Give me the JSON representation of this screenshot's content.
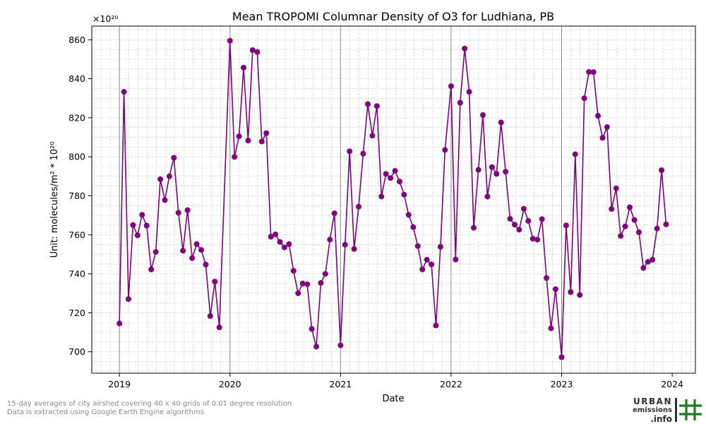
{
  "chart_data": {
    "type": "line",
    "title": "Mean TROPOMI Columnar Density of O3 for Ludhiana, PB",
    "xlabel": "Date",
    "ylabel": "Unit: molecules/m² * 10²⁰",
    "y_offset_label": "×10²⁰",
    "xlim": [
      2018.75,
      2024.21
    ],
    "ylim": [
      689,
      867
    ],
    "x_ticks": [
      2019,
      2020,
      2021,
      2022,
      2023,
      2024
    ],
    "x_tick_labels": [
      "2019",
      "2020",
      "2021",
      "2022",
      "2023",
      "2024"
    ],
    "y_ticks": [
      700,
      720,
      740,
      760,
      780,
      800,
      820,
      840,
      860
    ],
    "y_tick_labels": [
      "700",
      "720",
      "740",
      "760",
      "780",
      "800",
      "820",
      "840",
      "860"
    ],
    "grid": true,
    "year_lines": [
      2019,
      2020,
      2021,
      2022,
      2023
    ],
    "series": [
      {
        "color": "#800080",
        "marker": "circle",
        "x": [
          2019.0,
          2019.041,
          2019.082,
          2019.123,
          2019.164,
          2019.205,
          2019.247,
          2019.288,
          2019.329,
          2019.37,
          2019.411,
          2019.452,
          2019.493,
          2019.534,
          2019.575,
          2019.616,
          2019.658,
          2019.699,
          2019.74,
          2019.781,
          2019.822,
          2019.863,
          2019.904,
          2020.0,
          2020.041,
          2020.082,
          2020.123,
          2020.164,
          2020.205,
          2020.247,
          2020.288,
          2020.329,
          2020.37,
          2020.411,
          2020.452,
          2020.493,
          2020.534,
          2020.575,
          2020.616,
          2020.658,
          2020.699,
          2020.74,
          2020.781,
          2020.822,
          2020.863,
          2020.904,
          2020.945,
          2021.0,
          2021.041,
          2021.082,
          2021.123,
          2021.164,
          2021.205,
          2021.247,
          2021.288,
          2021.329,
          2021.37,
          2021.411,
          2021.452,
          2021.493,
          2021.534,
          2021.575,
          2021.616,
          2021.658,
          2021.699,
          2021.74,
          2021.781,
          2021.822,
          2021.863,
          2021.904,
          2021.945,
          2022.0,
          2022.041,
          2022.082,
          2022.123,
          2022.164,
          2022.205,
          2022.247,
          2022.288,
          2022.329,
          2022.37,
          2022.411,
          2022.452,
          2022.493,
          2022.534,
          2022.575,
          2022.616,
          2022.658,
          2022.699,
          2022.74,
          2022.781,
          2022.822,
          2022.863,
          2022.904,
          2022.945,
          2023.0,
          2023.041,
          2023.082,
          2023.123,
          2023.164,
          2023.205,
          2023.247,
          2023.288,
          2023.329,
          2023.37,
          2023.411,
          2023.452,
          2023.493,
          2023.534,
          2023.575,
          2023.616,
          2023.658,
          2023.699,
          2023.74,
          2023.781,
          2023.822,
          2023.863,
          2023.904,
          2023.945
        ],
        "y": [
          714.5,
          833.3,
          727,
          765,
          759.7,
          770.2,
          764.7,
          742.2,
          751.2,
          788.5,
          777.8,
          790,
          799.5,
          771.3,
          751.8,
          772.6,
          748,
          755.2,
          752.2,
          744.7,
          718.3,
          736,
          712.5,
          859.5,
          799.9,
          810.5,
          845.7,
          808.3,
          854.7,
          853.7,
          807.8,
          812.1,
          759,
          760.2,
          756.3,
          753.5,
          755.2,
          741.5,
          730,
          735,
          734.6,
          711.7,
          702.6,
          735.3,
          739.9,
          757.5,
          771,
          703.3,
          754.9,
          802.8,
          752.7,
          774.4,
          801.6,
          827,
          810.8,
          826,
          779.6,
          791.2,
          789.1,
          792.8,
          787.3,
          780.6,
          770.2,
          763.9,
          754.2,
          742.2,
          747.2,
          744.8,
          713.5,
          753.8,
          803.5,
          836.2,
          747.3,
          827.7,
          855.5,
          833.3,
          763.6,
          793.3,
          821.4,
          779.6,
          794.7,
          791.2,
          817.6,
          792.3,
          768.2,
          765.2,
          762.6,
          773.3,
          767.1,
          758,
          757.5,
          768,
          737.8,
          712,
          732.1,
          697.2,
          764.8,
          730.6,
          801.3,
          729.1,
          830,
          843.5,
          843.4,
          821,
          809.7,
          815.2,
          773.2,
          783.8,
          759.4,
          764.3,
          774.1,
          767.6,
          761.3,
          743,
          746.1,
          747.2,
          763.2,
          793.1,
          765.3
        ]
      }
    ]
  },
  "footer": {
    "line1": "15-day averages of city airshed covering 40 x 40 grids of 0.01 degree resolution",
    "line2": "Data is extracted using Google Earth Engine algorithms"
  },
  "logo": {
    "line1": "URBAN",
    "line2": "emissions",
    "line3": ".info",
    "color": "#2f2f2f",
    "accent_color": "#1f7a1f"
  }
}
